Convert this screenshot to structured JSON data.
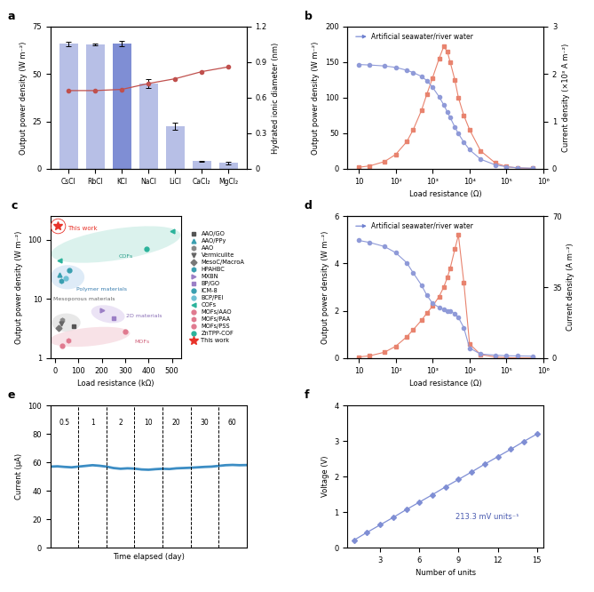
{
  "chart_data": [
    {
      "type": "bar",
      "title": "a",
      "categories": [
        "CsCl",
        "RbCl",
        "KCl",
        "NaCl",
        "LiCl",
        "CaCl₂",
        "MgCl₂"
      ],
      "ylabel": "Output power density (W m⁻²)",
      "y2label": "Hydrated ionic diameter (nm)",
      "ylim": [
        0,
        75
      ],
      "yticks": [
        0,
        25,
        50,
        75
      ],
      "y2lim": [
        0,
        1.2
      ],
      "y2ticks": [
        0,
        0.3,
        0.6,
        0.9,
        1.2
      ],
      "grid": false,
      "series": [
        {
          "type": "bar",
          "axis": "y",
          "colors": [
            "#b7bfe6",
            "#b7bfe6",
            "#7f8ed4",
            "#b7bfe6",
            "#b7bfe6",
            "#b7bfe6",
            "#b7bfe6"
          ],
          "values": [
            66,
            65.5,
            66,
            45,
            22.5,
            4,
            3
          ],
          "errors": [
            1.2,
            0.5,
            1.5,
            2.5,
            2,
            0.3,
            0.6
          ]
        },
        {
          "type": "line",
          "axis": "y2",
          "color": "#c0504d",
          "marker": "circle",
          "values": [
            0.66,
            0.66,
            0.67,
            0.72,
            0.76,
            0.82,
            0.86
          ]
        }
      ]
    },
    {
      "type": "line",
      "title": "b",
      "log": "x",
      "xlabel": "Load resistance (Ω)",
      "ylabel": "Output power density (W m⁻²)",
      "y2label": "Current density (×10³ A m⁻²)",
      "annotations": [
        "Artificial seawater/river water"
      ],
      "x": [
        10,
        20,
        50,
        100,
        200,
        300,
        500,
        700,
        1000,
        1500,
        2000,
        2500,
        3000,
        4000,
        5000,
        7000,
        10000,
        20000,
        50000,
        100000,
        200000,
        500000
      ],
      "xlim": [
        5,
        1000000
      ],
      "xticks": [
        10,
        {
          "value": 100,
          "label": "10²"
        },
        {
          "value": 1000,
          "label": "10³"
        },
        {
          "value": 10000,
          "label": "10⁴"
        },
        {
          "value": 100000,
          "label": "10⁵"
        },
        {
          "value": 1000000,
          "label": "10⁶"
        }
      ],
      "ylim": [
        0,
        200
      ],
      "yticks": [
        0,
        50,
        100,
        150,
        200
      ],
      "y2lim": [
        0,
        3
      ],
      "y2ticks": [
        0,
        1,
        2,
        3
      ],
      "grid": false,
      "series": [
        {
          "axis": "y",
          "color": "#e8836e",
          "marker": "square",
          "values": [
            2,
            4,
            10,
            20,
            38,
            55,
            82,
            105,
            128,
            155,
            172,
            165,
            150,
            125,
            100,
            75,
            55,
            25,
            8,
            3,
            1,
            0.5
          ]
        },
        {
          "axis": "y2",
          "color": "#8f9ad8",
          "marker": "circle",
          "values": [
            2.2,
            2.19,
            2.17,
            2.14,
            2.08,
            2.03,
            1.95,
            1.86,
            1.72,
            1.52,
            1.35,
            1.2,
            1.08,
            0.88,
            0.74,
            0.56,
            0.4,
            0.2,
            0.08,
            0.04,
            0.02,
            0.01
          ]
        }
      ]
    },
    {
      "type": "scatter",
      "title": "c",
      "log": "y",
      "xlabel": "Load resistance (kΩ)",
      "ylabel": "Output power density (W m⁻²)",
      "xlim": [
        -20,
        540
      ],
      "xticks": [
        0,
        100,
        200,
        300,
        400,
        500
      ],
      "ylim": [
        1,
        250
      ],
      "yticks": [
        1,
        10,
        100
      ],
      "grid": false,
      "legend": "right",
      "annotations": [
        "This work"
      ],
      "group_labels": [
        "COFs",
        "Polymer materials",
        "Mesoporous materials",
        "2D materials",
        "MOFs"
      ],
      "series": [
        {
          "name": "AAO/GO",
          "color": "#555555",
          "marker": "square",
          "x": [
            80
          ],
          "values": [
            3.5
          ]
        },
        {
          "name": "AAO/PPy",
          "color": "#3a9fb0",
          "marker": "triangle_up",
          "x": [
            20
          ],
          "values": [
            26
          ]
        },
        {
          "name": "AAO",
          "color": "#888888",
          "marker": "hexagon",
          "x": [
            30
          ],
          "values": [
            4.4
          ]
        },
        {
          "name": "Vermiculite",
          "color": "#666666",
          "marker": "triangle_down",
          "x": [
            25
          ],
          "values": [
            3.9
          ]
        },
        {
          "name": "MesoC/MacroA",
          "color": "#777777",
          "marker": "diamond",
          "x": [
            15
          ],
          "values": [
            3.2
          ]
        },
        {
          "name": "HPAHBC",
          "color": "#3a9fb0",
          "marker": "hexagon",
          "x": [
            25
          ],
          "values": [
            20
          ]
        },
        {
          "name": "MXBN",
          "color": "#9b7fc6",
          "marker": "triangle_right",
          "x": [
            200
          ],
          "values": [
            6.5
          ]
        },
        {
          "name": "BP/GO",
          "color": "#9b7fc6",
          "marker": "square",
          "x": [
            250
          ],
          "values": [
            4.8
          ]
        },
        {
          "name": "ICM-8",
          "color": "#3a9fb0",
          "marker": "circle",
          "x": [
            60
          ],
          "values": [
            30
          ]
        },
        {
          "name": "BCP/PEI",
          "color": "#6fc0d4",
          "marker": "circle",
          "x": [
            45
          ],
          "values": [
            22
          ]
        },
        {
          "name": "COFs",
          "color": "#2bb39b",
          "marker": "triangle_left",
          "x": [
            20,
            500
          ],
          "values": [
            45,
            140
          ]
        },
        {
          "name": "MOFs/AAO",
          "color": "#e07a8f",
          "marker": "circle",
          "x": [
            30
          ],
          "values": [
            1.6
          ]
        },
        {
          "name": "MOFs/PAA",
          "color": "#e07a8f",
          "marker": "hexagon",
          "x": [
            55
          ],
          "values": [
            2
          ]
        },
        {
          "name": "MOFs/PSS",
          "color": "#e07a8f",
          "marker": "circle",
          "x": [
            300
          ],
          "values": [
            2.8
          ]
        },
        {
          "name": "ZnTPP-COF",
          "color": "#2bb39b",
          "marker": "circle",
          "x": [
            390
          ],
          "values": [
            70
          ]
        },
        {
          "name": "This work",
          "color": "#e8332a",
          "marker": "star",
          "x": [
            10
          ],
          "values": [
            170
          ]
        }
      ]
    },
    {
      "type": "line",
      "title": "d",
      "log": "x",
      "xlabel": "Load resistance (Ω)",
      "ylabel": "Output power density (W m⁻²)",
      "y2label": "Current density (A m⁻²)",
      "annotations": [
        "Artificial seawater/river water"
      ],
      "x": [
        10,
        20,
        50,
        100,
        200,
        300,
        500,
        700,
        1000,
        1500,
        2000,
        2500,
        3000,
        4000,
        5000,
        7000,
        10000,
        20000,
        50000,
        100000,
        200000,
        500000
      ],
      "xlim": [
        5,
        1000000
      ],
      "xticks": [
        10,
        {
          "value": 100,
          "label": "10²"
        },
        {
          "value": 1000,
          "label": "10³"
        },
        {
          "value": 10000,
          "label": "10⁴"
        },
        {
          "value": 100000,
          "label": "10⁵"
        },
        {
          "value": 1000000,
          "label": "10⁶"
        }
      ],
      "ylim": [
        0,
        6
      ],
      "yticks": [
        0,
        2,
        4,
        6
      ],
      "y2lim": [
        0,
        70
      ],
      "y2ticks": [
        0,
        35,
        70
      ],
      "grid": false,
      "series": [
        {
          "axis": "y",
          "color": "#e8836e",
          "marker": "square",
          "values": [
            0.05,
            0.1,
            0.25,
            0.5,
            0.9,
            1.2,
            1.6,
            1.9,
            2.2,
            2.6,
            3.0,
            3.4,
            3.8,
            4.6,
            5.2,
            3.2,
            0.6,
            0.15,
            0.05,
            0.02,
            0.01,
            0.005
          ]
        },
        {
          "axis": "y2",
          "color": "#8f9ad8",
          "marker": "circle",
          "values": [
            58,
            57,
            55,
            52,
            47,
            42,
            36,
            31,
            27,
            25,
            24,
            23,
            23,
            22,
            20,
            15,
            5,
            2,
            1.5,
            1.2,
            1.1,
            1
          ]
        }
      ]
    },
    {
      "type": "line",
      "title": "e",
      "xlabel": "Time elapsed (day)",
      "ylabel": "Current (μA)",
      "tick_labels": "y",
      "segment_labels": [
        "0.5",
        "1",
        "2",
        "10",
        "20",
        "30",
        "60"
      ],
      "x": [
        0,
        0.25,
        0.5,
        0.75,
        1,
        1.25,
        1.5,
        1.75,
        2,
        2.25,
        2.5,
        2.75,
        3,
        3.25,
        3.5,
        3.75,
        4,
        4.25,
        4.5,
        4.75,
        5,
        5.25,
        5.5,
        5.75,
        6,
        6.25,
        6.5,
        6.75,
        7
      ],
      "xlim": [
        0,
        7
      ],
      "ylim": [
        0,
        100
      ],
      "yticks": [
        0,
        20,
        40,
        60,
        80,
        100
      ],
      "grid": false,
      "series": [
        {
          "color": "#3c8dc4",
          "values": [
            57,
            57.2,
            56.8,
            56.5,
            57,
            57.5,
            58,
            57.6,
            57,
            56,
            55.5,
            55.8,
            55.6,
            55,
            54.8,
            55.2,
            55.5,
            55.3,
            55.8,
            56,
            56.2,
            56.5,
            56.8,
            57,
            57.5,
            58,
            58.2,
            58,
            58.1
          ]
        }
      ]
    },
    {
      "type": "line",
      "title": "f",
      "xlabel": "Number of units",
      "ylabel": "Voltage (V)",
      "annotations": [
        "213.3 mV units⁻¹"
      ],
      "x": [
        1,
        2,
        3,
        4,
        5,
        6,
        7,
        8,
        9,
        10,
        11,
        12,
        13,
        14,
        15
      ],
      "xlim": [
        0.5,
        15.5
      ],
      "xticks": [
        3,
        6,
        9,
        12,
        15
      ],
      "ylim": [
        0,
        4
      ],
      "yticks": [
        0,
        1,
        2,
        3,
        4
      ],
      "grid": false,
      "series": [
        {
          "color": "#7f8ed4",
          "marker": "diamond",
          "values": [
            0.21,
            0.43,
            0.64,
            0.85,
            1.07,
            1.28,
            1.49,
            1.71,
            1.92,
            2.13,
            2.35,
            2.56,
            2.77,
            2.99,
            3.2
          ]
        }
      ]
    }
  ]
}
